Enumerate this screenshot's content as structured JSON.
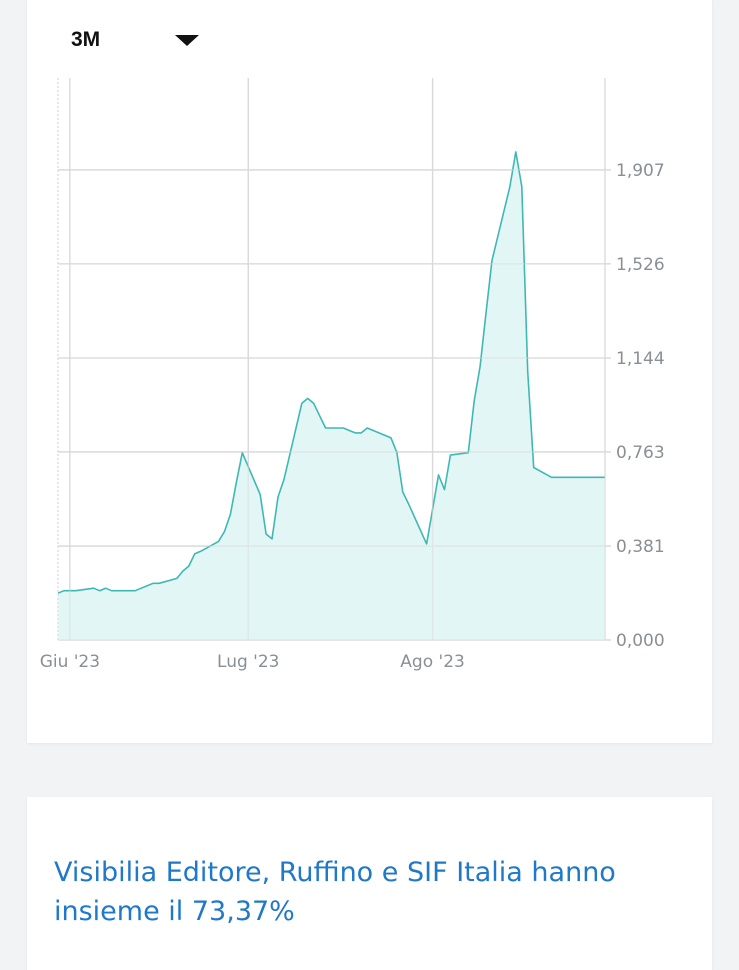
{
  "range_selector": {
    "label": "3M",
    "icon": "caret-down-icon"
  },
  "chart_data": {
    "type": "area",
    "title": "",
    "xlabel": "",
    "ylabel": "",
    "x_ticks": [
      {
        "date": "2023-06-01",
        "label": "Giu '23"
      },
      {
        "date": "2023-07-01",
        "label": "Lug '23"
      },
      {
        "date": "2023-08-01",
        "label": "Ago '23"
      }
    ],
    "y_ticks": [
      {
        "value": 0.0,
        "label": "0,000"
      },
      {
        "value": 0.381,
        "label": "0,381"
      },
      {
        "value": 0.763,
        "label": "0,763"
      },
      {
        "value": 1.144,
        "label": "1,144"
      },
      {
        "value": 1.526,
        "label": "1,526"
      },
      {
        "value": 1.907,
        "label": "1,907"
      }
    ],
    "xlim": [
      "2023-05-30",
      "2023-08-30"
    ],
    "ylim": [
      0.0,
      2.28
    ],
    "grid": true,
    "colors": {
      "line": "#3fb8b4",
      "fill": "#e2f6f5",
      "grid": "#d9d9d9"
    },
    "series": [
      {
        "x": [
          "2023-05-30",
          "2023-05-31",
          "2023-06-01",
          "2023-06-02",
          "2023-06-05",
          "2023-06-06",
          "2023-06-07",
          "2023-06-08",
          "2023-06-09",
          "2023-06-12",
          "2023-06-13",
          "2023-06-14",
          "2023-06-15",
          "2023-06-16",
          "2023-06-19",
          "2023-06-20",
          "2023-06-21",
          "2023-06-22",
          "2023-06-23",
          "2023-06-26",
          "2023-06-27",
          "2023-06-28",
          "2023-06-29",
          "2023-06-30",
          "2023-07-03",
          "2023-07-04",
          "2023-07-05",
          "2023-07-06",
          "2023-07-07",
          "2023-07-10",
          "2023-07-11",
          "2023-07-12",
          "2023-07-13",
          "2023-07-14",
          "2023-07-17",
          "2023-07-18",
          "2023-07-19",
          "2023-07-20",
          "2023-07-21",
          "2023-07-24",
          "2023-07-25",
          "2023-07-26",
          "2023-07-27",
          "2023-07-28",
          "2023-07-31",
          "2023-08-01",
          "2023-08-02",
          "2023-08-03",
          "2023-08-04",
          "2023-08-07",
          "2023-08-08",
          "2023-08-09",
          "2023-08-10",
          "2023-08-11",
          "2023-08-14",
          "2023-08-15",
          "2023-08-16",
          "2023-08-17",
          "2023-08-18",
          "2023-08-21",
          "2023-08-22",
          "2023-08-23",
          "2023-08-24",
          "2023-08-25",
          "2023-08-28",
          "2023-08-29",
          "2023-08-30"
        ],
        "y": [
          0.19,
          0.2,
          0.2,
          0.2,
          0.21,
          0.2,
          0.21,
          0.2,
          0.2,
          0.2,
          0.21,
          0.22,
          0.23,
          0.23,
          0.25,
          0.28,
          0.3,
          0.35,
          0.36,
          0.4,
          0.44,
          0.51,
          0.64,
          0.76,
          0.59,
          0.43,
          0.41,
          0.58,
          0.65,
          0.96,
          0.98,
          0.96,
          0.91,
          0.86,
          0.86,
          0.85,
          0.84,
          0.84,
          0.86,
          0.83,
          0.82,
          0.76,
          0.6,
          0.55,
          0.39,
          0.53,
          0.67,
          0.61,
          0.75,
          0.76,
          0.97,
          1.11,
          1.33,
          1.54,
          1.84,
          1.98,
          1.84,
          1.09,
          0.7,
          0.66,
          0.66,
          0.66,
          0.66,
          0.66,
          0.66,
          0.66,
          0.66
        ]
      }
    ]
  },
  "news": {
    "title": "Visibilia Editore, Ruffino e SIF Italia hanno insieme il 73,37%"
  }
}
